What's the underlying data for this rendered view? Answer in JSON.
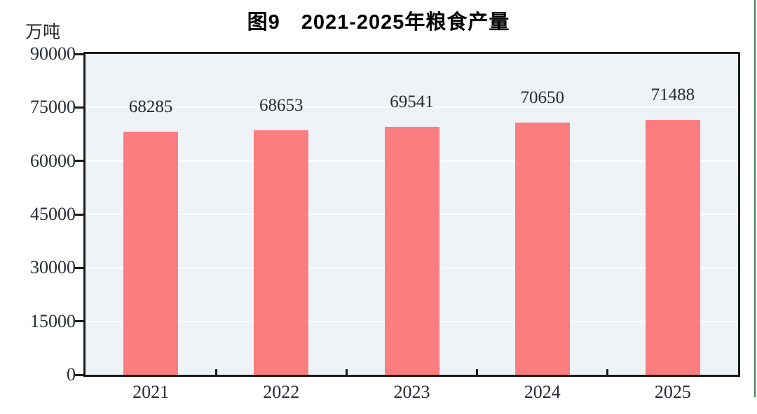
{
  "chart_data": {
    "type": "bar",
    "title": "图9　2021-2025年粮食产量",
    "unit_label": "万吨",
    "categories": [
      "2021",
      "2022",
      "2023",
      "2024",
      "2025"
    ],
    "values": [
      68285,
      68653,
      69541,
      70650,
      71488
    ],
    "bar_labels": [
      "68285",
      "68653",
      "69541",
      "70650",
      "71488"
    ],
    "xlabel": "",
    "ylabel": "万吨",
    "ylim": [
      0,
      90000
    ],
    "yticks": [
      0,
      15000,
      30000,
      45000,
      60000,
      75000,
      90000
    ],
    "grid": "horizontal",
    "legend": "none",
    "colors": {
      "bar": "#FC7D7F",
      "plot_background": "#EDF3F6",
      "axis_border": "#1A1A1A",
      "gridline": "#FFFFFF",
      "text": "#262B33",
      "title": "#000000",
      "right_edge_line": "#4F7B55"
    }
  }
}
